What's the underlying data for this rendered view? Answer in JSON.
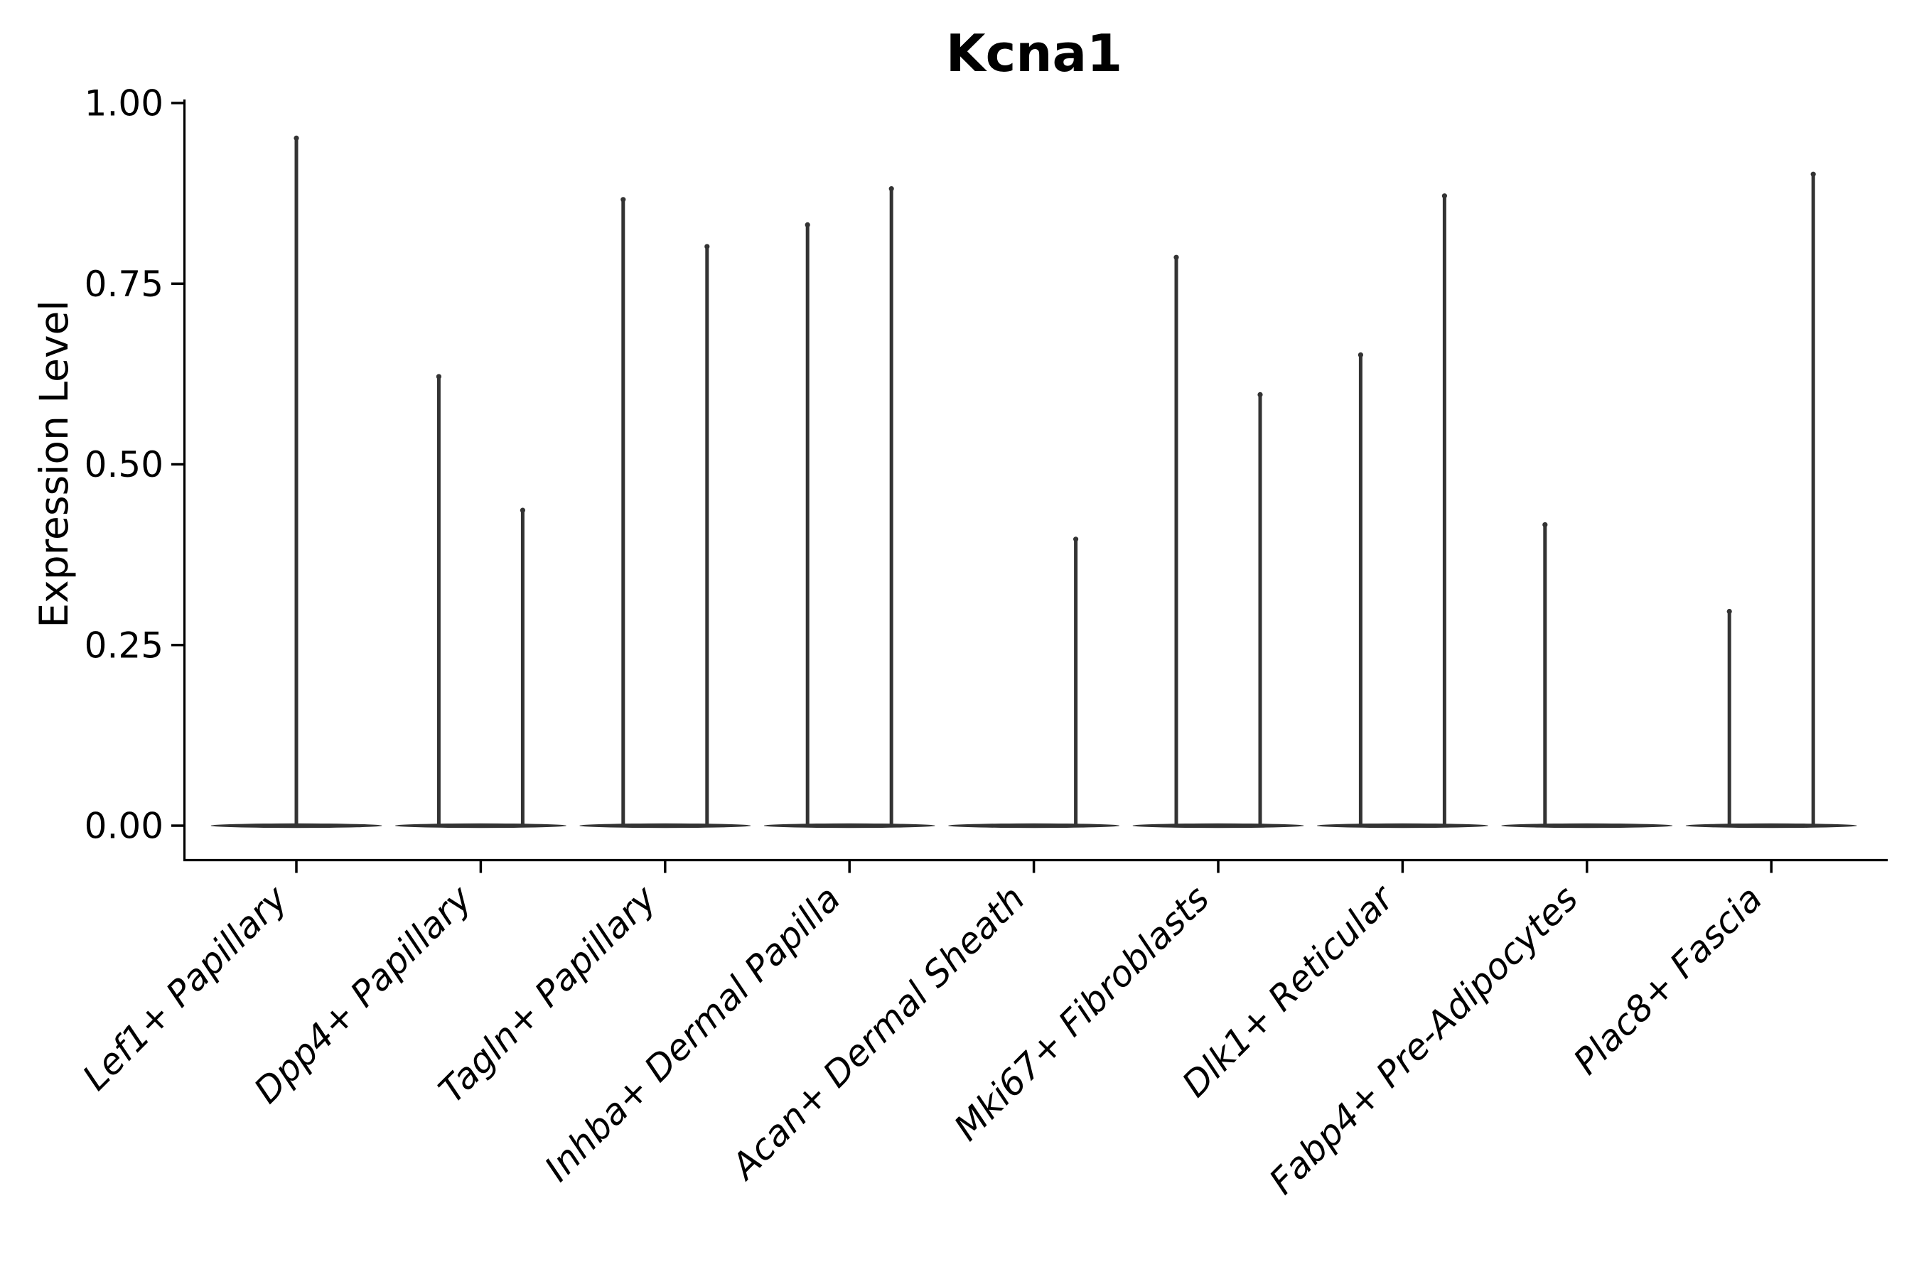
{
  "figure": {
    "title": "Kcna1",
    "ylabel": "Expression Level"
  },
  "chart_data": {
    "type": "violin",
    "title": "Kcna1",
    "xlabel": "",
    "ylabel": "Expression Level",
    "ylim": [
      0,
      1
    ],
    "grid": false,
    "legend": "none",
    "description": "Violin plot of Kcna1 expression per fibroblast subtype; each violin is a flat lens at 0 expression with thin vertical tails (spikes) rising to the maximum expressed value. Spikes sit at left/center/right slots within each category.",
    "yticks": [
      {
        "label": "1.00",
        "value": 1.0
      },
      {
        "label": "0.75",
        "value": 0.75
      },
      {
        "label": "0.50",
        "value": 0.5
      },
      {
        "label": "0.25",
        "value": 0.25
      },
      {
        "label": "0.00",
        "value": 0.0
      }
    ],
    "categories": [
      "Lef1+ Papillary",
      "Dpp4+ Papillary",
      "Tagln+ Papillary",
      "Inhba+ Dermal Papilla",
      "Acan+ Dermal Sheath",
      "Mki67+ Fibroblasts",
      "Dlk1+ Reticular",
      "Fabp4+ Pre-Adipocytes",
      "Plac8+ Fascia"
    ],
    "violins": [
      {
        "category": "Lef1+ Papillary",
        "base_value": 0,
        "spikes": [
          {
            "slot": "center",
            "value": 0.955
          }
        ]
      },
      {
        "category": "Dpp4+ Papillary",
        "base_value": 0,
        "spikes": [
          {
            "slot": "left",
            "value": 0.625
          },
          {
            "slot": "right",
            "value": 0.44
          }
        ]
      },
      {
        "category": "Tagln+ Papillary",
        "base_value": 0,
        "spikes": [
          {
            "slot": "left",
            "value": 0.87
          },
          {
            "slot": "right",
            "value": 0.805
          }
        ]
      },
      {
        "category": "Inhba+ Dermal Papilla",
        "base_value": 0,
        "spikes": [
          {
            "slot": "left",
            "value": 0.835
          },
          {
            "slot": "right",
            "value": 0.885
          }
        ]
      },
      {
        "category": "Acan+ Dermal Sheath",
        "base_value": 0,
        "spikes": [
          {
            "slot": "right",
            "value": 0.4
          }
        ]
      },
      {
        "category": "Mki67+ Fibroblasts",
        "base_value": 0,
        "spikes": [
          {
            "slot": "left",
            "value": 0.79
          },
          {
            "slot": "right",
            "value": 0.6
          }
        ]
      },
      {
        "category": "Dlk1+ Reticular",
        "base_value": 0,
        "spikes": [
          {
            "slot": "left",
            "value": 0.655
          },
          {
            "slot": "right",
            "value": 0.875
          }
        ]
      },
      {
        "category": "Fabp4+ Pre-Adipocytes",
        "base_value": 0,
        "spikes": [
          {
            "slot": "left",
            "value": 0.42
          }
        ]
      },
      {
        "category": "Plac8+ Fascia",
        "base_value": 0,
        "spikes": [
          {
            "slot": "left",
            "value": 0.3
          },
          {
            "slot": "right",
            "value": 0.905
          }
        ]
      }
    ],
    "colors": {
      "violin": "#333333",
      "axis": "#000000",
      "text": "#000000",
      "background": "#ffffff"
    }
  }
}
